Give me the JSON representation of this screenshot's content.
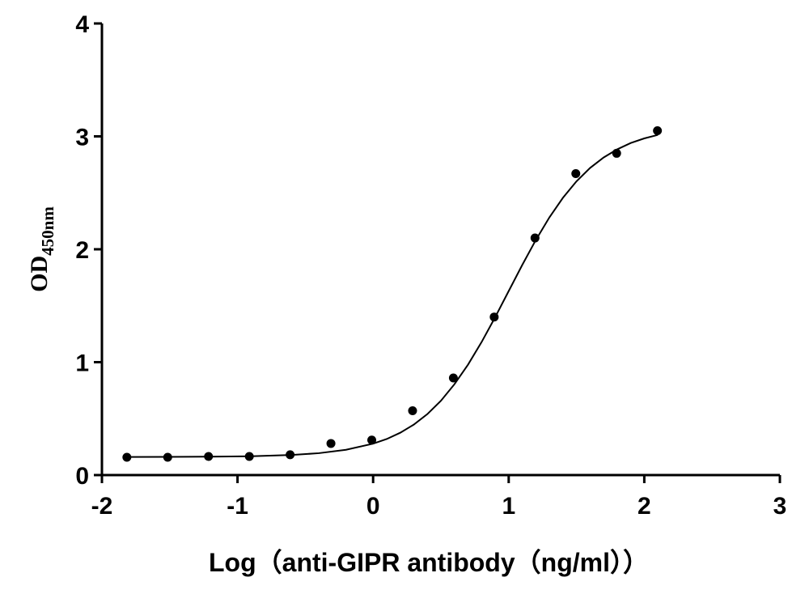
{
  "chart_data": {
    "type": "scatter",
    "xlabel": "Log（anti-GIPR antibody（ng/ml））",
    "ylabel": "OD",
    "ylabel_subscript": "450nm",
    "x": [
      -1.816,
      -1.515,
      -1.214,
      -0.913,
      -0.612,
      -0.311,
      -0.01,
      0.291,
      0.592,
      0.893,
      1.194,
      1.495,
      1.796,
      2.097
    ],
    "values": [
      0.158,
      0.158,
      0.165,
      0.165,
      0.18,
      0.28,
      0.31,
      0.57,
      0.86,
      1.4,
      2.1,
      2.67,
      2.85,
      3.05
    ],
    "fit": {
      "x": [
        -1.8,
        -1.5,
        -1.2,
        -0.9,
        -0.6,
        -0.4,
        -0.2,
        0,
        0.1,
        0.2,
        0.3,
        0.4,
        0.5,
        0.6,
        0.7,
        0.8,
        0.9,
        1.0,
        1.1,
        1.2,
        1.3,
        1.4,
        1.5,
        1.6,
        1.7,
        1.8,
        1.9,
        2.0,
        2.1
      ],
      "values": [
        0.16,
        0.161,
        0.163,
        0.167,
        0.178,
        0.194,
        0.224,
        0.278,
        0.319,
        0.375,
        0.447,
        0.54,
        0.658,
        0.805,
        0.978,
        1.178,
        1.398,
        1.63,
        1.861,
        2.082,
        2.282,
        2.456,
        2.602,
        2.72,
        2.813,
        2.885,
        2.941,
        2.982,
        3.013
      ]
    },
    "color": "#000000",
    "xlim": [
      -2,
      3
    ],
    "xticks": [
      -2,
      -1,
      0,
      1,
      2,
      3
    ],
    "ylim": [
      0,
      4
    ],
    "yticks": [
      0,
      1,
      2,
      3,
      4
    ]
  }
}
